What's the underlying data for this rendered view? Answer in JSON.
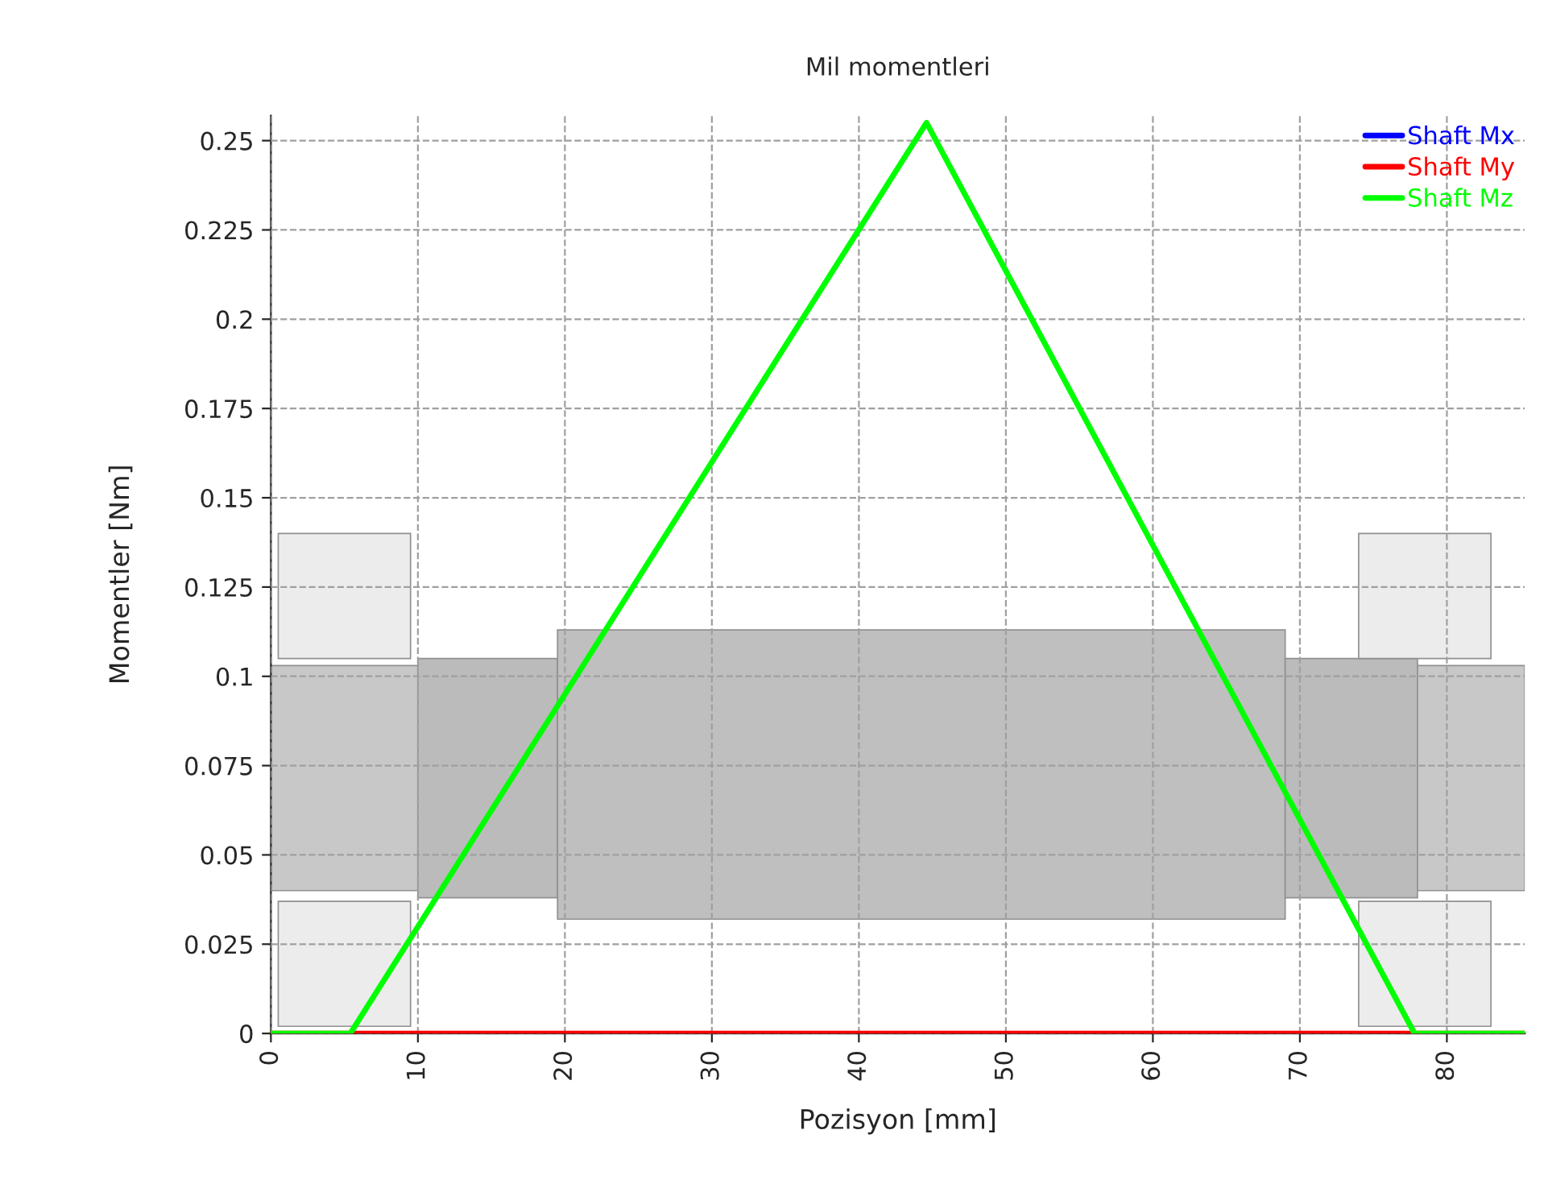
{
  "chart_data": {
    "type": "line",
    "title": "Mil momentleri",
    "xlabel": "Pozisyon [mm]",
    "ylabel": "Momentler [Nm]",
    "x": [
      0,
      5.4,
      44.6,
      77.8,
      85.3
    ],
    "series": [
      {
        "name": "Shaft Mx",
        "color": "#0000ff",
        "values": [
          null,
          null,
          null,
          null,
          null
        ]
      },
      {
        "name": "Shaft My",
        "color": "#ff0000",
        "values": [
          0,
          0,
          0,
          0,
          0
        ]
      },
      {
        "name": "Shaft Mz",
        "color": "#00ff00",
        "values": [
          0,
          0,
          0.255,
          0,
          0
        ]
      }
    ],
    "xlim": [
      0,
      85.3
    ],
    "xticks": [
      0,
      10,
      20,
      30,
      40,
      50,
      60,
      70,
      80
    ],
    "ylim": [
      0,
      0.257
    ],
    "yticks": [
      0,
      0.025,
      0.05,
      0.075,
      0.1,
      0.125,
      0.15,
      0.175,
      0.2,
      0.225,
      0.25
    ],
    "grid": true,
    "legend": "top right",
    "line_style": "solid",
    "marker": "none"
  }
}
